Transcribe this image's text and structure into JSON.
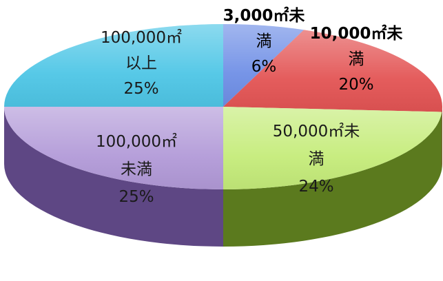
{
  "chart_data": {
    "type": "pie",
    "slices": [
      {
        "label_lines": [
          "3,000㎡未",
          "満",
          "6%"
        ],
        "value": 6,
        "color": "#6f8fe6",
        "side_color": "#3d5aa8"
      },
      {
        "label_lines": [
          "10,000㎡未",
          "満",
          "20%"
        ],
        "value": 20,
        "color": "#e35454",
        "side_color": "#9c2a2a"
      },
      {
        "label_lines": [
          "50,000㎡未",
          "満",
          "24%"
        ],
        "value": 24,
        "color": "#c5ec7a",
        "side_color": "#5b7a1e"
      },
      {
        "label_lines": [
          "100,000㎡",
          "未満",
          "25%"
        ],
        "value": 25,
        "color": "#b29ad8",
        "side_color": "#5e4784"
      },
      {
        "label_lines": [
          "100,000㎡",
          "以上",
          "25%"
        ],
        "value": 25,
        "color": "#4ec6e6",
        "side_color": "#1d7c98"
      }
    ]
  }
}
